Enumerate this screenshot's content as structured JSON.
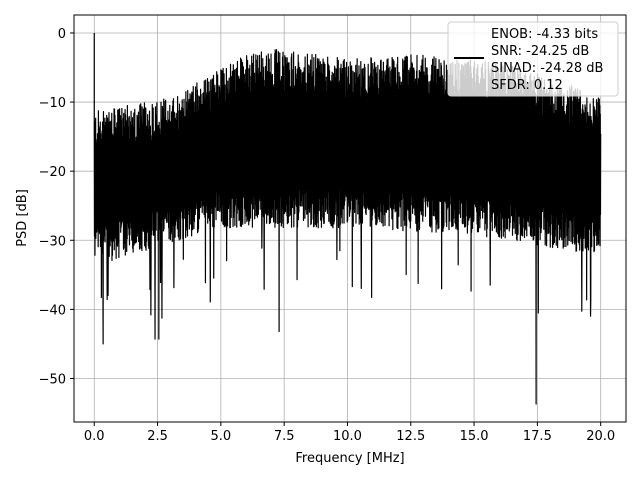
{
  "chart_data": {
    "type": "line",
    "title": "",
    "xlabel": "Frequency [MHz]",
    "ylabel": "PSD [dB]",
    "xlim": [
      -0.8,
      21.0
    ],
    "ylim": [
      -56.3,
      2.6
    ],
    "xticks": [
      0.0,
      2.5,
      5.0,
      7.5,
      10.0,
      12.5,
      15.0,
      17.5,
      20.0
    ],
    "xtick_labels": [
      "0.0",
      "2.5",
      "5.0",
      "7.5",
      "10.0",
      "12.5",
      "15.0",
      "17.5",
      "20.0"
    ],
    "yticks": [
      0,
      -10,
      -20,
      -30,
      -40,
      -50
    ],
    "ytick_labels": [
      "0",
      "−10",
      "−20",
      "−30",
      "−40",
      "−50"
    ],
    "grid": true,
    "legend_position": "top-right",
    "legend": {
      "entries": [
        "ENOB: -4.33 bits",
        "SNR: -24.25 dB",
        "SINAD: -24.28 dB",
        "SFDR: 0.12"
      ],
      "line_color": "#000000"
    },
    "series": [
      {
        "color": "#000000",
        "style": "dense noise trace",
        "x_range": [
          0.0,
          20.0
        ],
        "notable_points": [
          {
            "x": 0.0,
            "y": 0.0
          },
          {
            "x": 0.35,
            "y": -45.0
          },
          {
            "x": 2.4,
            "y": -44.3
          },
          {
            "x": 2.55,
            "y": -44.3
          },
          {
            "x": 7.3,
            "y": -43.2
          },
          {
            "x": 17.45,
            "y": -53.7
          },
          {
            "x": 19.6,
            "y": -41.0
          }
        ],
        "typical_upper_envelope": [
          {
            "x": 0.5,
            "y": -12.0
          },
          {
            "x": 3.0,
            "y": -10.0
          },
          {
            "x": 6.5,
            "y": -3.0
          },
          {
            "x": 10.0,
            "y": -4.5
          },
          {
            "x": 13.0,
            "y": -4.0
          },
          {
            "x": 16.5,
            "y": -5.5
          },
          {
            "x": 20.0,
            "y": -10.0
          }
        ],
        "typical_lower_envelope": [
          {
            "x": 0.5,
            "y": -32.0
          },
          {
            "x": 5.0,
            "y": -27.0
          },
          {
            "x": 10.0,
            "y": -27.0
          },
          {
            "x": 15.0,
            "y": -28.0
          },
          {
            "x": 20.0,
            "y": -31.0
          }
        ]
      }
    ]
  }
}
